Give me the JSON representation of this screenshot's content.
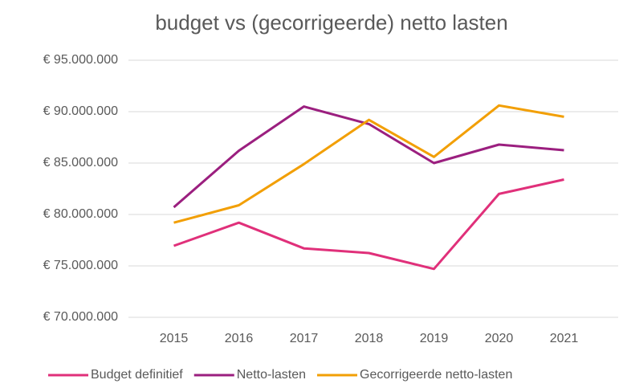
{
  "chart_data": {
    "type": "line",
    "title": "budget vs (gecorrigeerde) netto lasten",
    "categories": [
      "2015",
      "2016",
      "2017",
      "2018",
      "2019",
      "2020",
      "2021"
    ],
    "series": [
      {
        "name": "Budget definitief",
        "color": "#e0307a",
        "values": [
          76950000,
          79200000,
          76700000,
          76250000,
          74700000,
          82000000,
          83400000
        ]
      },
      {
        "name": "Netto-lasten",
        "color": "#9b1f7f",
        "values": [
          80700000,
          86200000,
          90500000,
          88800000,
          85000000,
          86800000,
          86250000
        ]
      },
      {
        "name": "Gecorrigeerde netto-lasten",
        "color": "#f29f05",
        "values": [
          79200000,
          80900000,
          84900000,
          89200000,
          85600000,
          90600000,
          89500000
        ]
      }
    ],
    "ylim": [
      70000000,
      95000000
    ],
    "yticks": [
      {
        "value": 70000000,
        "label": "€ 70.000.000"
      },
      {
        "value": 75000000,
        "label": "€ 75.000.000"
      },
      {
        "value": 80000000,
        "label": "€ 80.000.000"
      },
      {
        "value": 85000000,
        "label": "€ 85.000.000"
      },
      {
        "value": 90000000,
        "label": "€ 90.000.000"
      },
      {
        "value": 95000000,
        "label": "€ 95.000.000"
      }
    ],
    "grid": true,
    "legend": "bottom"
  }
}
